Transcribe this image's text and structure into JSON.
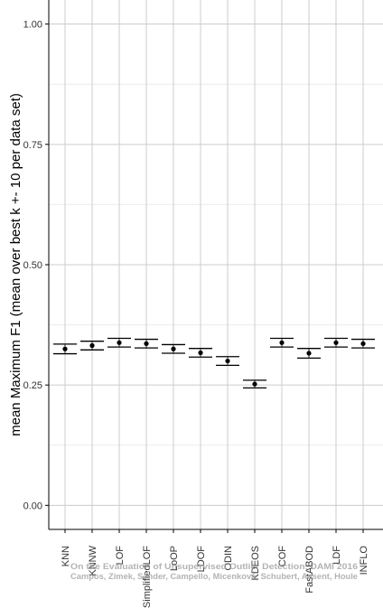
{
  "chart_data": {
    "type": "scatter",
    "title": "",
    "xlabel": "",
    "ylabel": "mean Maximum F1 (mean over best k +- 10 per data set)",
    "ylim": [
      -0.05,
      1.05
    ],
    "yticks": [
      "0.00",
      "0.25",
      "0.50",
      "0.75",
      "1.00"
    ],
    "grid": true,
    "categories": [
      "KNN",
      "KNNW",
      "LOF",
      "SimplifiedLOF",
      "LoOP",
      "LDOF",
      "ODIN",
      "KDEOS",
      "COF",
      "FastABOD",
      "LDF",
      "INFLO"
    ],
    "series": [
      {
        "mean": [
          0.325,
          0.332,
          0.338,
          0.336,
          0.325,
          0.317,
          0.3,
          0.252,
          0.338,
          0.316,
          0.338,
          0.336
        ],
        "upper": [
          0.335,
          0.341,
          0.347,
          0.345,
          0.334,
          0.326,
          0.309,
          0.26,
          0.347,
          0.326,
          0.347,
          0.345
        ],
        "lower": [
          0.315,
          0.323,
          0.329,
          0.327,
          0.316,
          0.308,
          0.291,
          0.244,
          0.329,
          0.306,
          0.329,
          0.327
        ]
      }
    ]
  },
  "watermark": {
    "line1": "On the Evaluation of Unsupervised Outlier Detection, DAMI 2016",
    "line2": "Campos, Zimek, Sander, Campello, Micenková, Schubert, Assent, Houle"
  },
  "colors": {
    "grid_major": "#cccccc",
    "grid_minor": "#ebebeb",
    "axis": "#000000",
    "marker": "#000000"
  }
}
